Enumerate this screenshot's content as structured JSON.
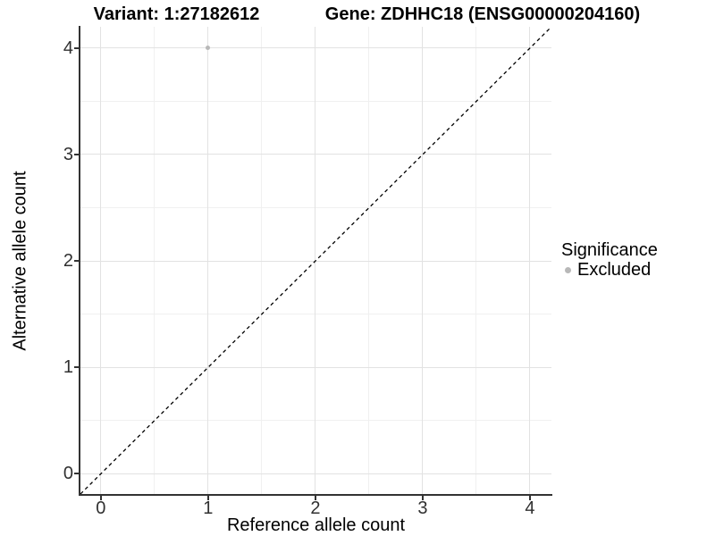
{
  "header": {
    "variant_title": "Variant: 1:27182612",
    "gene_title": "Gene: ZDHHC18 (ENSG00000204160)"
  },
  "legend": {
    "title": "Significance",
    "entries": [
      {
        "label": "Excluded",
        "color": "#b8b8b8"
      }
    ]
  },
  "chart_data": {
    "type": "scatter",
    "title": "Variant: 1:27182612   Gene: ZDHHC18 (ENSG00000204160)",
    "xlabel": "Reference allele count",
    "ylabel": "Alternative allele count",
    "xlim": [
      -0.19,
      4.2
    ],
    "ylim": [
      -0.19,
      4.2
    ],
    "x_ticks": [
      0,
      1,
      2,
      3,
      4
    ],
    "y_ticks": [
      0,
      1,
      2,
      3,
      4
    ],
    "x_minor_ticks": [
      0.5,
      1.5,
      2.5,
      3.5
    ],
    "y_minor_ticks": [
      0.5,
      1.5,
      2.5,
      3.5
    ],
    "grid": "major+minor",
    "legend_position": "right",
    "series": [
      {
        "name": "Excluded",
        "color": "#b8b8b8",
        "points": [
          {
            "x": 1,
            "y": 4
          }
        ]
      }
    ],
    "identity_line": {
      "style": "dashed",
      "color": "#000000",
      "from": [
        -0.19,
        -0.19
      ],
      "to": [
        4.2,
        4.2
      ]
    },
    "colors": {
      "grid_major": "#e2e2e2",
      "grid_minor": "#f0f0f0",
      "axis_line": "#333333",
      "point": "#b8b8b8"
    }
  }
}
